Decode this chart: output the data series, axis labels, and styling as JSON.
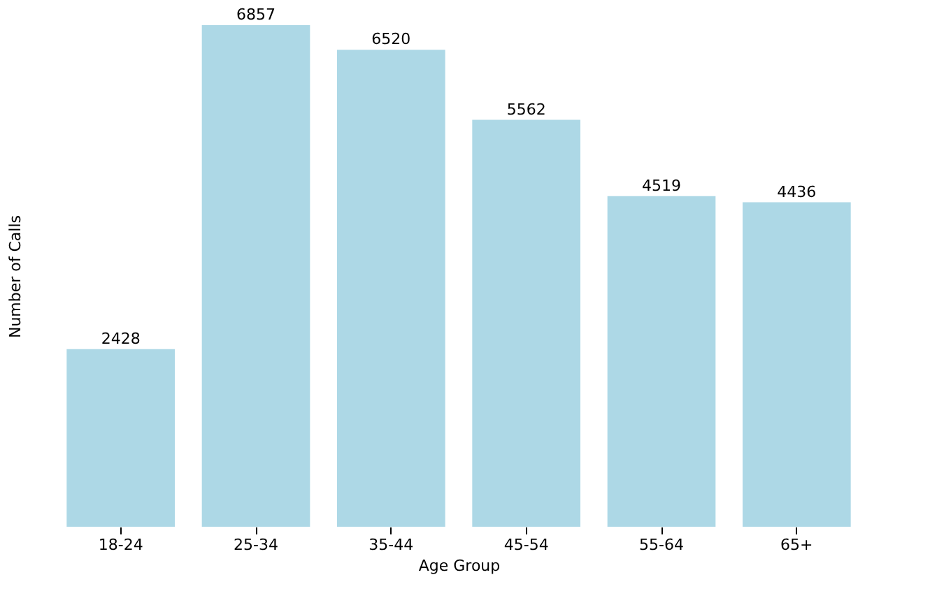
{
  "chart_data": {
    "type": "bar",
    "xlabel": "Age Group",
    "ylabel": "Number of Calls",
    "categories": [
      "18-24",
      "25-34",
      "35-44",
      "45-54",
      "55-64",
      "65+"
    ],
    "values": [
      2428,
      6857,
      6520,
      5562,
      4519,
      4436
    ],
    "color": "#add8e6",
    "data_labels": true,
    "grid": false,
    "tick_labels": "x"
  }
}
